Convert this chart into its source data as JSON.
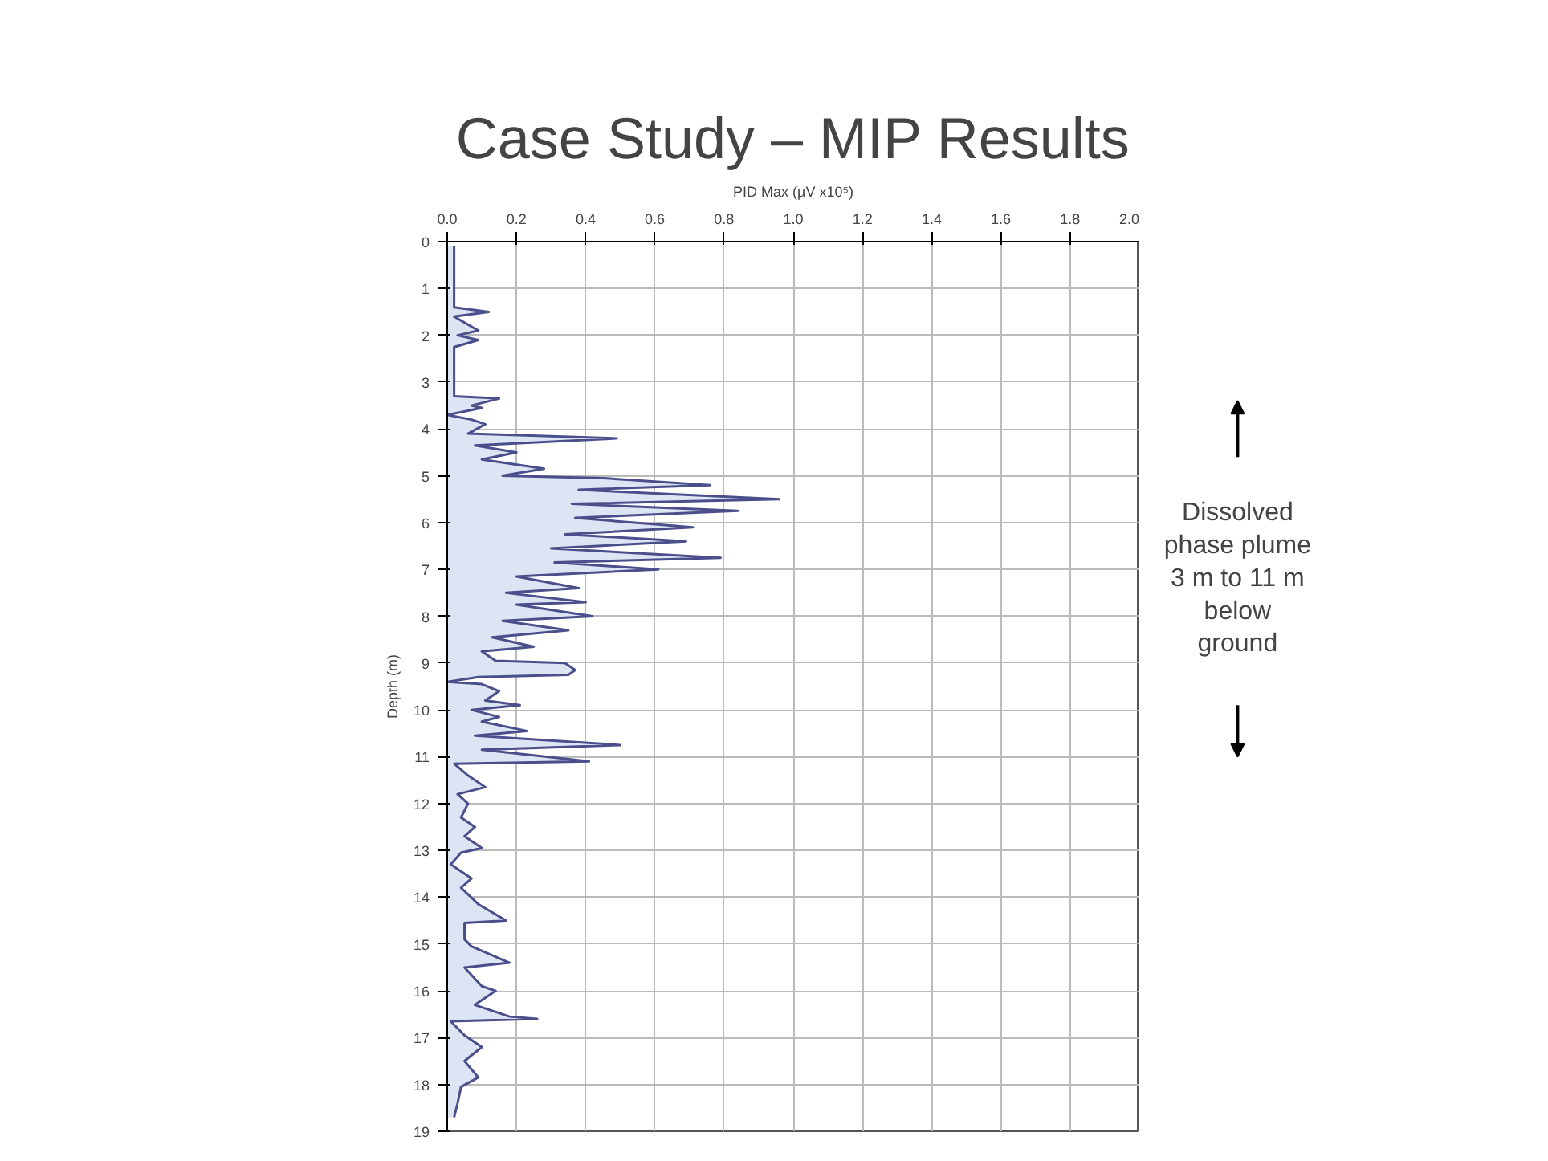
{
  "chart_data": {
    "type": "area",
    "orientation": "horizontal",
    "title": "Case Study – MIP Results",
    "xlabel": "PID Max (µV x10⁵)",
    "ylabel": "Depth (m)",
    "annotations": [
      "Dissolved\nphase plume\n3 m to 11 m\nbelow\nground"
    ],
    "xlim": [
      0,
      2
    ],
    "xticks": [
      {
        "value": 0,
        "label": "0.0"
      },
      0.2,
      0.4,
      0.6,
      0.8,
      {
        "value": 1,
        "label": "1.0"
      },
      1.2,
      1.4,
      1.6,
      1.8,
      {
        "value": 2,
        "label": "2.0"
      }
    ],
    "ylim": [
      19,
      0
    ],
    "yticks": [
      0,
      1,
      2,
      3,
      4,
      5,
      6,
      7,
      8,
      9,
      10,
      11,
      12,
      13,
      14,
      15,
      16,
      17,
      18,
      19
    ],
    "grid": true,
    "tick_labels": "xy",
    "x": [
      0.1,
      1.4,
      1.5,
      1.6,
      1.9,
      2.0,
      2.1,
      2.25,
      2.5,
      3.3,
      3.35,
      3.5,
      3.55,
      3.7,
      3.8,
      3.9,
      4.1,
      4.2,
      4.35,
      4.5,
      4.65,
      4.85,
      5.0,
      5.05,
      5.2,
      5.3,
      5.5,
      5.6,
      5.75,
      5.9,
      6.1,
      6.25,
      6.4,
      6.55,
      6.75,
      6.85,
      7.0,
      7.15,
      7.4,
      7.5,
      7.7,
      7.75,
      8.0,
      8.1,
      8.3,
      8.45,
      8.65,
      8.75,
      8.95,
      9.0,
      9.15,
      9.25,
      9.3,
      9.4,
      9.45,
      9.6,
      9.8,
      9.9,
      10.0,
      10.15,
      10.25,
      10.45,
      10.55,
      10.75,
      10.85,
      11.1,
      11.15,
      11.4,
      11.65,
      11.8,
      12.0,
      12.3,
      12.5,
      12.7,
      12.95,
      13.05,
      13.3,
      13.6,
      13.8,
      14.15,
      14.5,
      14.55,
      14.9,
      15.05,
      15.4,
      15.5,
      15.9,
      16.0,
      16.3,
      16.55,
      16.6,
      16.65,
      16.95,
      17.2,
      17.5,
      17.85,
      18.05,
      18.4,
      18.7
    ],
    "series": [
      {
        "color": "#4a4f8c",
        "values": [
          0.02,
          0.02,
          0.12,
          0.02,
          0.09,
          0.03,
          0.09,
          0.02,
          0.02,
          0.02,
          0.15,
          0.07,
          0.1,
          0.0,
          0.07,
          0.11,
          0.06,
          0.49,
          0.08,
          0.2,
          0.1,
          0.28,
          0.16,
          0.45,
          0.76,
          0.38,
          0.96,
          0.36,
          0.84,
          0.37,
          0.71,
          0.34,
          0.69,
          0.3,
          0.79,
          0.31,
          0.61,
          0.2,
          0.38,
          0.17,
          0.4,
          0.2,
          0.42,
          0.16,
          0.35,
          0.13,
          0.25,
          0.1,
          0.14,
          0.34,
          0.37,
          0.35,
          0.09,
          0.0,
          0.1,
          0.15,
          0.11,
          0.21,
          0.07,
          0.15,
          0.1,
          0.23,
          0.08,
          0.5,
          0.1,
          0.41,
          0.02,
          0.06,
          0.11,
          0.03,
          0.06,
          0.04,
          0.08,
          0.05,
          0.1,
          0.04,
          0.01,
          0.07,
          0.04,
          0.09,
          0.17,
          0.05,
          0.05,
          0.07,
          0.18,
          0.05,
          0.1,
          0.14,
          0.08,
          0.18,
          0.26,
          0.01,
          0.05,
          0.1,
          0.05,
          0.09,
          0.04,
          0.03,
          0.02
        ]
      }
    ]
  }
}
